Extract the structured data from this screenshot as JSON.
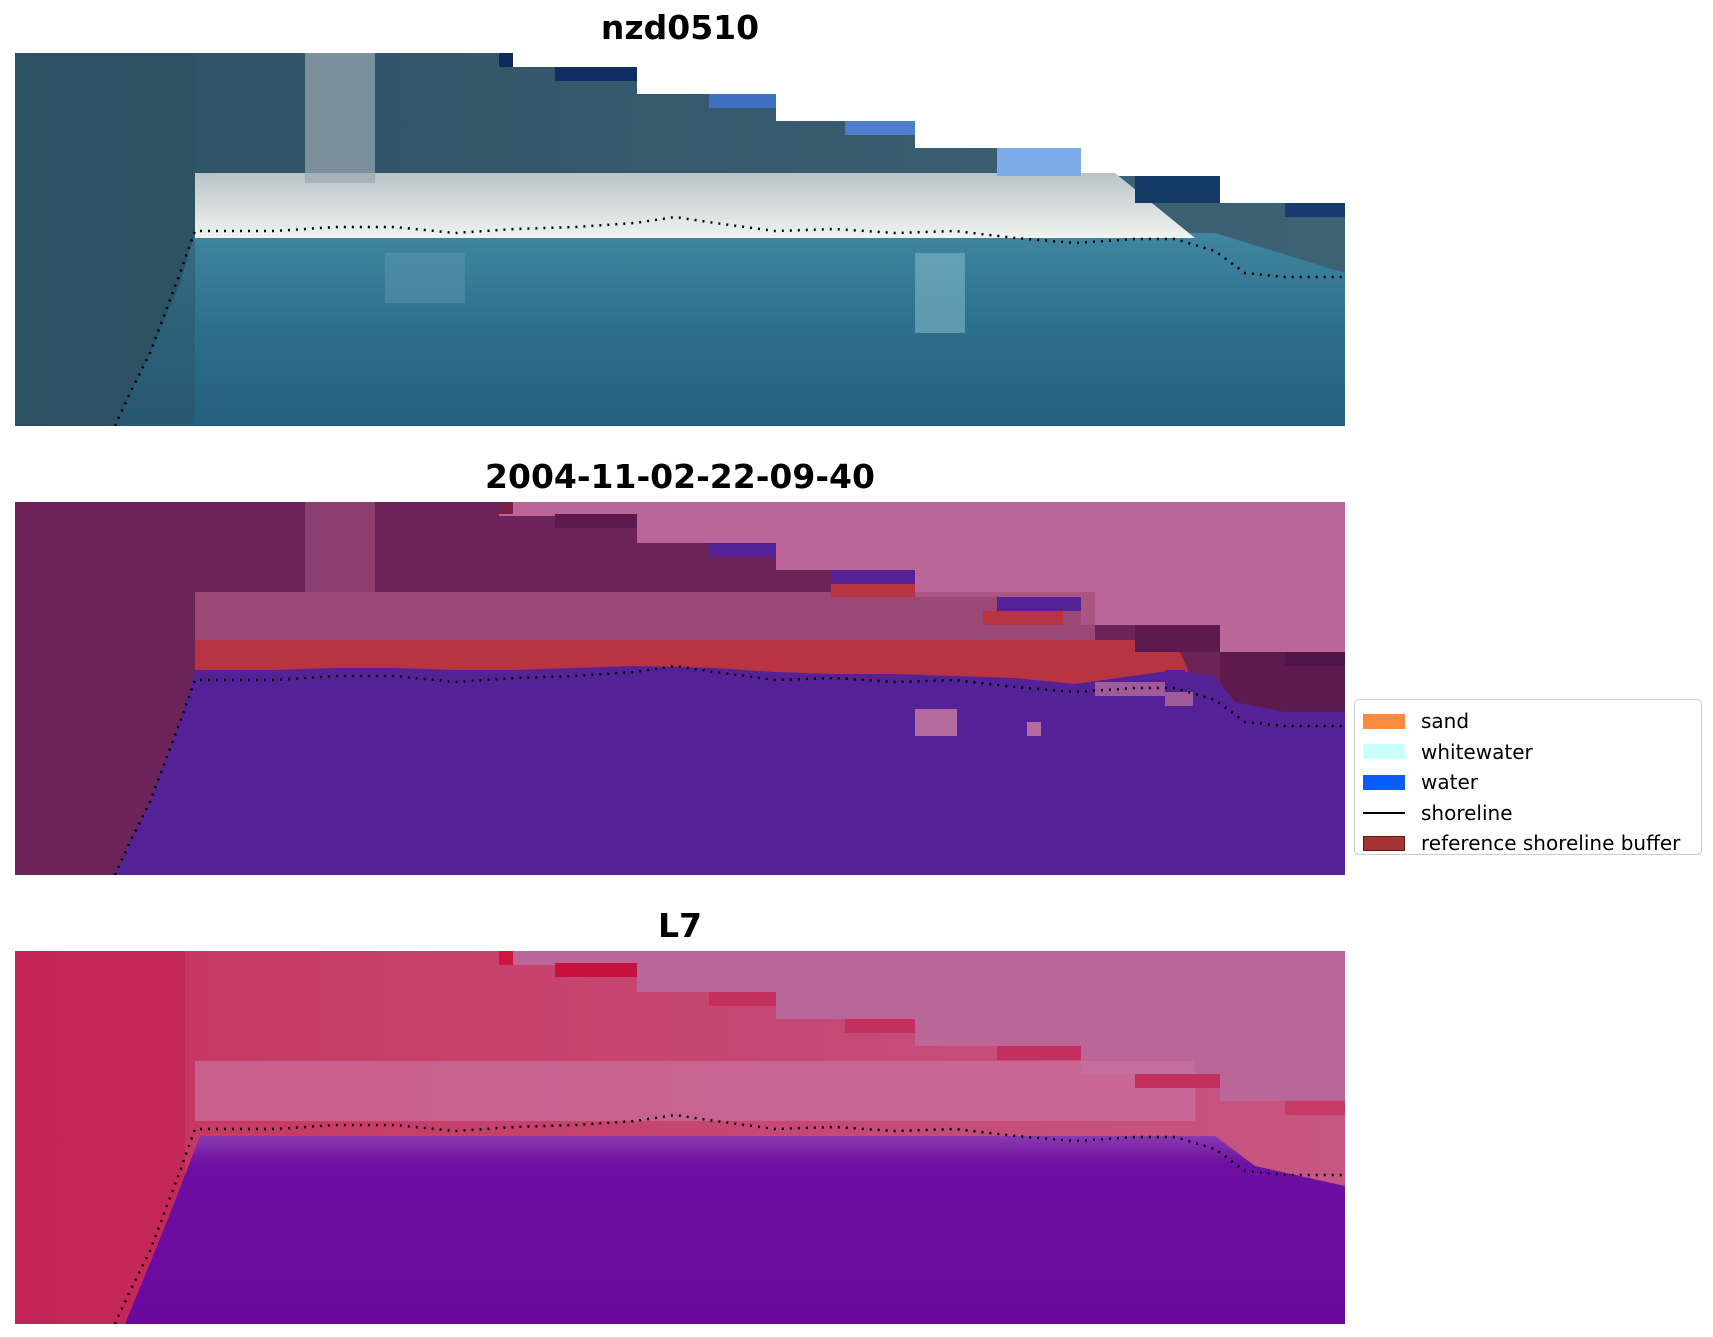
{
  "panels": [
    {
      "title": "nzd0510"
    },
    {
      "title": "2004-11-02-22-09-40"
    },
    {
      "title": "L7"
    }
  ],
  "legend": {
    "items": [
      {
        "label": "sand",
        "color": "#fd8c40",
        "kind": "patch"
      },
      {
        "label": "whitewater",
        "color": "#c8fefc",
        "kind": "patch"
      },
      {
        "label": "water",
        "color": "#0b5cfa",
        "kind": "patch"
      },
      {
        "label": "shoreline",
        "color": "#000000",
        "kind": "line"
      },
      {
        "label": "reference shoreline buffer",
        "color": "#a33334",
        "kind": "patch"
      }
    ]
  },
  "colors": {
    "rgb_land": "#2f5568",
    "rgb_water": "#2a6d8c",
    "rgb_beach": "#e8ece9",
    "class_land": "#6c2458",
    "class_water": "#542296",
    "class_buffer": "#b93443",
    "class_nodata": "#bb6698",
    "ndwi_land": "#c42a5a",
    "ndwi_water": "#6a0a9c",
    "ndwi_nodata": "#bb6698",
    "shoreline": "#000000"
  }
}
